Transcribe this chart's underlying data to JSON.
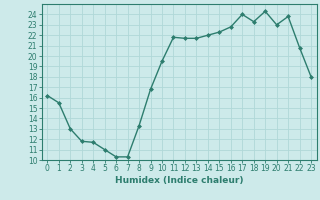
{
  "x": [
    0,
    1,
    2,
    3,
    4,
    5,
    6,
    7,
    8,
    9,
    10,
    11,
    12,
    13,
    14,
    15,
    16,
    17,
    18,
    19,
    20,
    21,
    22,
    23
  ],
  "y": [
    16.2,
    15.5,
    13.0,
    11.8,
    11.7,
    11.0,
    10.3,
    10.3,
    13.3,
    16.8,
    19.5,
    21.8,
    21.7,
    21.7,
    22.0,
    22.3,
    22.8,
    24.0,
    23.3,
    24.3,
    23.0,
    23.8,
    20.8,
    18.0
  ],
  "xlim": [
    -0.5,
    23.5
  ],
  "ylim": [
    10,
    25
  ],
  "yticks": [
    10,
    11,
    12,
    13,
    14,
    15,
    16,
    17,
    18,
    19,
    20,
    21,
    22,
    23,
    24
  ],
  "xticks": [
    0,
    1,
    2,
    3,
    4,
    5,
    6,
    7,
    8,
    9,
    10,
    11,
    12,
    13,
    14,
    15,
    16,
    17,
    18,
    19,
    20,
    21,
    22,
    23
  ],
  "xlabel": "Humidex (Indice chaleur)",
  "line_color": "#2d7d6e",
  "marker": "D",
  "marker_size": 2.0,
  "line_width": 1.0,
  "bg_color": "#cdeaea",
  "grid_color": "#b0d8d8",
  "tick_label_fontsize": 5.5,
  "xlabel_fontsize": 6.5
}
